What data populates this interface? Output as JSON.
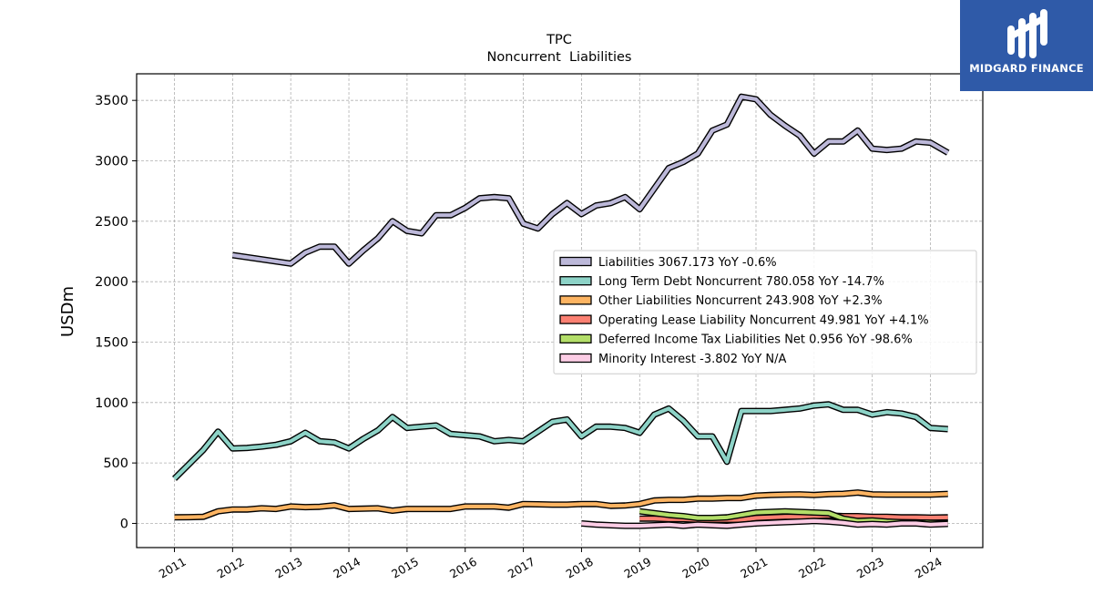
{
  "brand": {
    "name": "MIDGARD FINANCE",
    "logo_icon": "midgard-m-logo-icon",
    "background_color": "#2f5aa8"
  },
  "chart_data": {
    "type": "line",
    "title": "TPC",
    "subtitle": "Noncurrent  Liabilities",
    "xlabel": "",
    "ylabel": "USDm",
    "xlim": [
      2010.35,
      2024.9
    ],
    "ylim": [
      -200,
      3720
    ],
    "x_ticks": [
      "2011",
      "2012",
      "2013",
      "2014",
      "2015",
      "2016",
      "2017",
      "2018",
      "2019",
      "2020",
      "2021",
      "2022",
      "2023",
      "2024"
    ],
    "y_ticks": [
      0,
      500,
      1000,
      1500,
      2000,
      2500,
      3000,
      3500
    ],
    "grid": true,
    "legend_position": "center-right",
    "series": [
      {
        "name": "Liabilities",
        "legend_label": "Liabilities  3067.173 YoY -0.6%",
        "color": "#bcb8d9",
        "x": [
          2012.0,
          2013.0,
          2013.25,
          2013.5,
          2013.75,
          2014.0,
          2014.25,
          2014.5,
          2014.75,
          2015.0,
          2015.25,
          2015.5,
          2015.75,
          2016.0,
          2016.25,
          2016.5,
          2016.75,
          2017.0,
          2017.25,
          2017.5,
          2017.75,
          2018.0,
          2018.25,
          2018.5,
          2018.75,
          2019.0,
          2019.25,
          2019.5,
          2019.75,
          2020.0,
          2020.25,
          2020.5,
          2020.75,
          2021.0,
          2021.25,
          2021.5,
          2021.75,
          2022.0,
          2022.25,
          2022.5,
          2022.75,
          2023.0,
          2023.25,
          2023.5,
          2023.75,
          2024.0,
          2024.3
        ],
        "values": [
          2220,
          2150,
          2240,
          2290,
          2290,
          2150,
          2260,
          2360,
          2500,
          2420,
          2400,
          2550,
          2550,
          2610,
          2690,
          2700,
          2690,
          2480,
          2440,
          2560,
          2650,
          2560,
          2630,
          2650,
          2700,
          2600,
          2770,
          2940,
          2990,
          3060,
          3250,
          3300,
          3530,
          3510,
          3380,
          3290,
          3210,
          3060,
          3160,
          3160,
          3250,
          3100,
          3090,
          3100,
          3160,
          3150,
          3067
        ]
      },
      {
        "name": "Long Term Debt Noncurrent",
        "legend_label": "Long Term Debt Noncurrent  780.058 YoY -14.7%",
        "color": "#8dd3c7",
        "x": [
          2011.0,
          2011.25,
          2011.5,
          2011.75,
          2012.0,
          2012.25,
          2012.5,
          2012.75,
          2013.0,
          2013.25,
          2013.5,
          2013.75,
          2014.0,
          2014.25,
          2014.5,
          2014.75,
          2015.0,
          2015.25,
          2015.5,
          2015.75,
          2016.0,
          2016.25,
          2016.5,
          2016.75,
          2017.0,
          2017.25,
          2017.5,
          2017.75,
          2018.0,
          2018.25,
          2018.5,
          2018.75,
          2019.0,
          2019.25,
          2019.5,
          2019.75,
          2020.0,
          2020.25,
          2020.5,
          2020.75,
          2021.0,
          2021.25,
          2021.5,
          2021.75,
          2022.0,
          2022.25,
          2022.5,
          2022.75,
          2023.0,
          2023.25,
          2023.5,
          2023.75,
          2024.0,
          2024.3
        ],
        "values": [
          370,
          490,
          610,
          760,
          620,
          625,
          635,
          650,
          680,
          750,
          680,
          670,
          620,
          700,
          770,
          880,
          790,
          800,
          810,
          740,
          730,
          720,
          680,
          690,
          680,
          760,
          840,
          860,
          720,
          800,
          800,
          790,
          750,
          900,
          950,
          850,
          720,
          720,
          510,
          930,
          930,
          930,
          940,
          950,
          975,
          985,
          940,
          940,
          900,
          920,
          910,
          880,
          790,
          780
        ]
      },
      {
        "name": "Other Liabilities Noncurrent",
        "legend_label": "Other Liabilities Noncurrent  243.908 YoY +2.3%",
        "color": "#fdb462",
        "x": [
          2011.0,
          2011.25,
          2011.5,
          2011.75,
          2012.0,
          2012.25,
          2012.5,
          2012.75,
          2013.0,
          2013.25,
          2013.5,
          2013.75,
          2014.0,
          2014.25,
          2014.5,
          2014.75,
          2015.0,
          2015.25,
          2015.5,
          2015.75,
          2016.0,
          2016.25,
          2016.5,
          2016.75,
          2017.0,
          2017.25,
          2017.5,
          2017.75,
          2018.0,
          2018.25,
          2018.5,
          2018.75,
          2019.0,
          2019.25,
          2019.5,
          2019.75,
          2020.0,
          2020.25,
          2020.5,
          2020.75,
          2021.0,
          2021.25,
          2021.5,
          2021.75,
          2022.0,
          2022.25,
          2022.5,
          2022.75,
          2023.0,
          2023.25,
          2023.5,
          2023.75,
          2024.0,
          2024.3
        ],
        "values": [
          50,
          52,
          55,
          100,
          115,
          115,
          125,
          120,
          140,
          135,
          138,
          150,
          120,
          122,
          125,
          105,
          120,
          120,
          120,
          120,
          140,
          140,
          140,
          130,
          160,
          158,
          155,
          155,
          160,
          160,
          145,
          148,
          160,
          190,
          195,
          195,
          205,
          205,
          210,
          210,
          230,
          235,
          238,
          240,
          235,
          242,
          245,
          255,
          240,
          238,
          238,
          238,
          238,
          244
        ]
      },
      {
        "name": "Operating Lease Liability Noncurrent",
        "legend_label": "Operating Lease Liability Noncurrent  49.981 YoY +4.1%",
        "color": "#fb8072",
        "x": [
          2019.0,
          2019.25,
          2019.5,
          2019.75,
          2020.0,
          2020.25,
          2020.5,
          2020.75,
          2021.0,
          2021.25,
          2021.5,
          2021.75,
          2022.0,
          2022.25,
          2022.5,
          2022.75,
          2023.0,
          2023.25,
          2023.5,
          2023.75,
          2024.0,
          2024.3
        ],
        "values": [
          40,
          40,
          35,
          35,
          30,
          30,
          30,
          30,
          45,
          50,
          55,
          55,
          60,
          65,
          60,
          60,
          55,
          55,
          50,
          50,
          48,
          50
        ]
      },
      {
        "name": "Deferred Income Tax Liabilities Net",
        "legend_label": "Deferred Income Tax Liabilities Net  0.956 YoY -98.6%",
        "color": "#b3de69",
        "x": [
          2019.0,
          2019.25,
          2019.5,
          2019.75,
          2020.0,
          2020.25,
          2020.5,
          2020.75,
          2021.0,
          2021.25,
          2021.5,
          2021.75,
          2022.0,
          2022.25,
          2022.5,
          2022.75,
          2023.0,
          2023.25,
          2023.5,
          2023.75,
          2024.0,
          2024.3
        ],
        "values": [
          100,
          85,
          70,
          60,
          45,
          45,
          50,
          70,
          90,
          95,
          100,
          95,
          90,
          85,
          40,
          20,
          25,
          15,
          10,
          8,
          5,
          1
        ]
      },
      {
        "name": "Minority Interest",
        "legend_label": "Minority Interest  -3.802 YoY N/A",
        "color": "#fccde5",
        "x": [
          2018.0,
          2018.25,
          2018.5,
          2018.75,
          2019.0,
          2019.25,
          2019.5,
          2019.75,
          2020.0,
          2020.25,
          2020.5,
          2020.75,
          2021.0,
          2021.25,
          2021.5,
          2021.75,
          2022.0,
          2022.25,
          2022.5,
          2022.75,
          2023.0,
          2023.25,
          2023.5,
          2023.75,
          2024.0,
          2024.3
        ],
        "values": [
          0,
          -10,
          -15,
          -20,
          -20,
          -15,
          -10,
          -20,
          -10,
          -15,
          -20,
          -10,
          0,
          5,
          10,
          15,
          20,
          15,
          5,
          -10,
          -5,
          -10,
          0,
          0,
          -10,
          -4
        ]
      }
    ]
  }
}
